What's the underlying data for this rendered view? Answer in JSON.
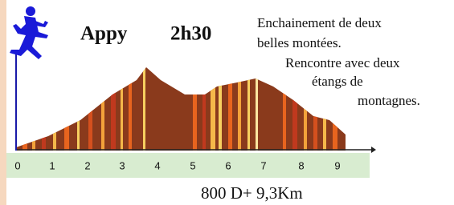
{
  "header": {
    "title": "Appy",
    "duration": "2h30"
  },
  "description": [
    "Enchainement de deux",
    "belles montées.",
    "Rencontre avec deux",
    "étangs de",
    "montagnes."
  ],
  "axis": {
    "labels": [
      "0",
      "1",
      "2",
      "3",
      "4",
      "5",
      "6",
      "7",
      "8",
      "9"
    ]
  },
  "footer": "800 D+ 9,3Km"
}
